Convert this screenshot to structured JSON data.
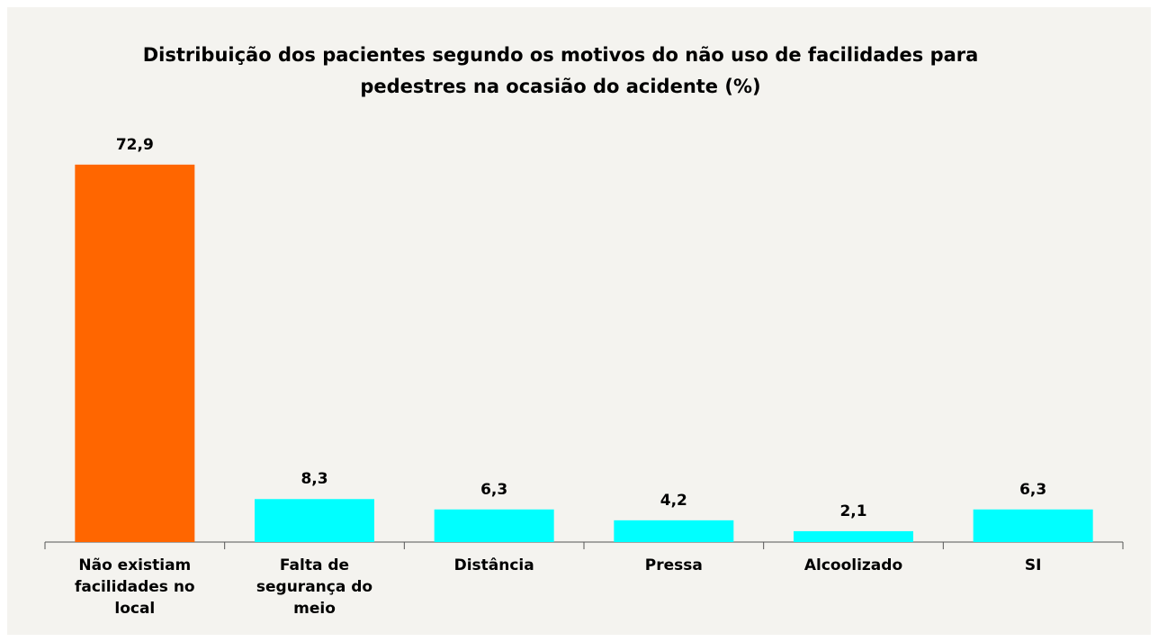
{
  "chart_data": {
    "type": "bar",
    "title": "Distribuição dos pacientes segundo os motivos do não uso de facilidades para pedestres na ocasião do acidente (%)",
    "categories": [
      "Não existiam facilidades no local",
      "Falta de segurança do meio",
      "Distância",
      "Pressa",
      "Alcoolizado",
      "SI"
    ],
    "values": [
      72.9,
      8.3,
      6.3,
      4.2,
      2.1,
      6.3
    ],
    "value_labels": [
      "72,9",
      "8,3",
      "6,3",
      "4,2",
      "2,1",
      "6,3"
    ],
    "colors": [
      "#ff6600",
      "#00ffff",
      "#00ffff",
      "#00ffff",
      "#00ffff",
      "#00ffff"
    ],
    "ylim": [
      0,
      80
    ]
  }
}
